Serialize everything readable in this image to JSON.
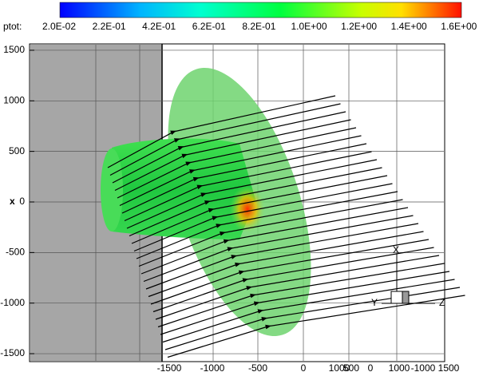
{
  "colorbar": {
    "label": "ptot:",
    "ticks": [
      "2.0E-02",
      "2.2E-01",
      "4.2E-01",
      "6.2E-01",
      "8.2E-01",
      "1.0E+00",
      "1.2E+00",
      "1.4E+00",
      "1.6E+00"
    ]
  },
  "y_axis": {
    "title": "x",
    "ticks": [
      1500,
      1000,
      500,
      0,
      -500,
      -1000,
      -1500
    ]
  },
  "x_axis": {
    "tick_labels": [
      "-1500",
      "-1000",
      "-500",
      "0",
      "1000",
      "500",
      "0",
      "1000",
      "-1000",
      "1500"
    ]
  },
  "triad": {
    "x": "X",
    "y": "Y",
    "z": "Z"
  }
}
